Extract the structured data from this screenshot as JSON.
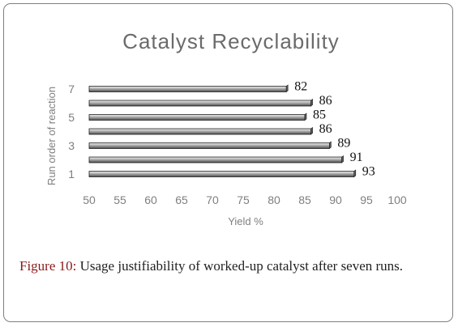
{
  "chart_data": {
    "type": "bar",
    "orientation": "horizontal",
    "title": "Catalyst Recyclability",
    "xlabel": "Yield %",
    "ylabel": "Run order of reaction",
    "categories": [
      "1",
      "2",
      "3",
      "4",
      "5",
      "6",
      "7"
    ],
    "y_tick_labels": [
      "1",
      "3",
      "5",
      "7"
    ],
    "values": [
      93,
      91,
      89,
      86,
      85,
      86,
      82
    ],
    "xlim": [
      50,
      100
    ],
    "x_ticks": [
      "50",
      "55",
      "60",
      "65",
      "70",
      "75",
      "80",
      "85",
      "90",
      "95",
      "100"
    ],
    "grid": false,
    "legend": "none",
    "bar_style": "3d-cylinder",
    "colors": {
      "bar_light": "#cfcfcf",
      "bar_dark": "#5a5a5a",
      "bar_edge": "#222222",
      "axis_text": "#7f7f7f",
      "title": "#6b6b6b"
    }
  },
  "caption": {
    "label": "Figure 10:",
    "text": "Usage justifiability of worked-up catalyst after seven runs."
  }
}
